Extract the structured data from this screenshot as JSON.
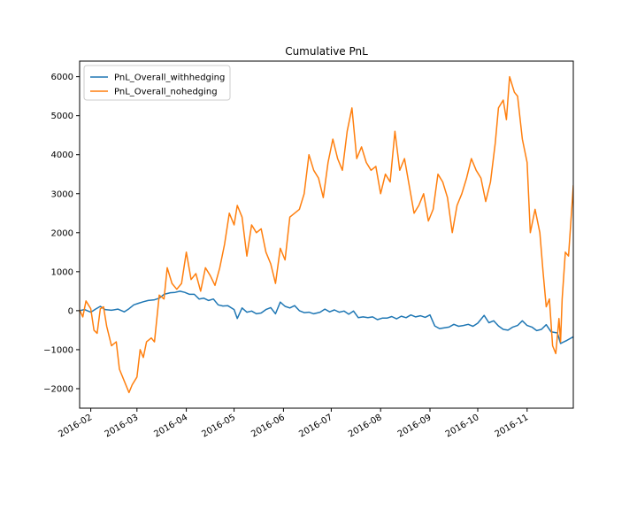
{
  "chart_data": {
    "type": "line",
    "title": "Cumulative PnL",
    "xlabel": "",
    "ylabel": "",
    "legend_position": "top-left",
    "grid": false,
    "x_ticks": [
      "2016-02",
      "2016-03",
      "2016-04",
      "2016-05",
      "2016-06",
      "2016-07",
      "2016-08",
      "2016-09",
      "2016-10",
      "2016-11"
    ],
    "y_ticks": [
      -2000,
      -1000,
      0,
      1000,
      2000,
      3000,
      4000,
      5000,
      6000
    ],
    "xlim": [
      "2016-01-25",
      "2016-11-30"
    ],
    "ylim": [
      -2500,
      6400
    ],
    "series": [
      {
        "name": "PnL_Overall_withhedging",
        "color": "#1f77b4",
        "points": [
          [
            "2016-01-25",
            0
          ],
          [
            "2016-01-28",
            30
          ],
          [
            "2016-02-01",
            -40
          ],
          [
            "2016-02-04",
            40
          ],
          [
            "2016-02-07",
            110
          ],
          [
            "2016-02-10",
            30
          ],
          [
            "2016-02-14",
            10
          ],
          [
            "2016-02-18",
            40
          ],
          [
            "2016-02-22",
            -30
          ],
          [
            "2016-02-25",
            50
          ],
          [
            "2016-02-28",
            150
          ],
          [
            "2016-03-02",
            190
          ],
          [
            "2016-03-05",
            230
          ],
          [
            "2016-03-08",
            260
          ],
          [
            "2016-03-12",
            280
          ],
          [
            "2016-03-15",
            320
          ],
          [
            "2016-03-18",
            420
          ],
          [
            "2016-03-22",
            460
          ],
          [
            "2016-03-25",
            470
          ],
          [
            "2016-03-28",
            500
          ],
          [
            "2016-03-31",
            470
          ],
          [
            "2016-04-03",
            420
          ],
          [
            "2016-04-06",
            420
          ],
          [
            "2016-04-09",
            300
          ],
          [
            "2016-04-12",
            320
          ],
          [
            "2016-04-15",
            260
          ],
          [
            "2016-04-18",
            300
          ],
          [
            "2016-04-21",
            150
          ],
          [
            "2016-04-24",
            120
          ],
          [
            "2016-04-27",
            130
          ],
          [
            "2016-05-01",
            30
          ],
          [
            "2016-05-03",
            -200
          ],
          [
            "2016-05-06",
            70
          ],
          [
            "2016-05-09",
            -40
          ],
          [
            "2016-05-12",
            -10
          ],
          [
            "2016-05-15",
            -80
          ],
          [
            "2016-05-18",
            -60
          ],
          [
            "2016-05-21",
            30
          ],
          [
            "2016-05-24",
            80
          ],
          [
            "2016-05-27",
            -80
          ],
          [
            "2016-05-30",
            220
          ],
          [
            "2016-06-02",
            110
          ],
          [
            "2016-06-05",
            70
          ],
          [
            "2016-06-08",
            130
          ],
          [
            "2016-06-11",
            0
          ],
          [
            "2016-06-14",
            -50
          ],
          [
            "2016-06-17",
            -40
          ],
          [
            "2016-06-20",
            -80
          ],
          [
            "2016-06-24",
            -40
          ],
          [
            "2016-06-27",
            40
          ],
          [
            "2016-06-30",
            -30
          ],
          [
            "2016-07-03",
            20
          ],
          [
            "2016-07-06",
            -40
          ],
          [
            "2016-07-09",
            -10
          ],
          [
            "2016-07-12",
            -90
          ],
          [
            "2016-07-15",
            -10
          ],
          [
            "2016-07-18",
            -180
          ],
          [
            "2016-07-21",
            -160
          ],
          [
            "2016-07-24",
            -180
          ],
          [
            "2016-07-27",
            -160
          ],
          [
            "2016-07-30",
            -230
          ],
          [
            "2016-08-02",
            -190
          ],
          [
            "2016-08-05",
            -190
          ],
          [
            "2016-08-08",
            -150
          ],
          [
            "2016-08-11",
            -210
          ],
          [
            "2016-08-14",
            -140
          ],
          [
            "2016-08-17",
            -180
          ],
          [
            "2016-08-20",
            -110
          ],
          [
            "2016-08-23",
            -160
          ],
          [
            "2016-08-26",
            -130
          ],
          [
            "2016-08-29",
            -170
          ],
          [
            "2016-09-01",
            -110
          ],
          [
            "2016-09-04",
            -390
          ],
          [
            "2016-09-07",
            -460
          ],
          [
            "2016-09-10",
            -440
          ],
          [
            "2016-09-13",
            -420
          ],
          [
            "2016-09-16",
            -350
          ],
          [
            "2016-09-19",
            -400
          ],
          [
            "2016-09-22",
            -380
          ],
          [
            "2016-09-25",
            -350
          ],
          [
            "2016-09-28",
            -400
          ],
          [
            "2016-10-01",
            -320
          ],
          [
            "2016-10-03",
            -220
          ],
          [
            "2016-10-05",
            -120
          ],
          [
            "2016-10-08",
            -310
          ],
          [
            "2016-10-11",
            -260
          ],
          [
            "2016-10-14",
            -390
          ],
          [
            "2016-10-17",
            -480
          ],
          [
            "2016-10-20",
            -500
          ],
          [
            "2016-10-23",
            -420
          ],
          [
            "2016-10-26",
            -380
          ],
          [
            "2016-10-29",
            -260
          ],
          [
            "2016-11-01",
            -380
          ],
          [
            "2016-11-04",
            -420
          ],
          [
            "2016-11-07",
            -510
          ],
          [
            "2016-11-10",
            -480
          ],
          [
            "2016-11-13",
            -360
          ],
          [
            "2016-11-16",
            -540
          ],
          [
            "2016-11-20",
            -570
          ],
          [
            "2016-11-22",
            -840
          ],
          [
            "2016-11-26",
            -760
          ],
          [
            "2016-11-30",
            -670
          ]
        ]
      },
      {
        "name": "PnL_Overall_nohedging",
        "color": "#ff7f0e",
        "points": [
          [
            "2016-01-25",
            20
          ],
          [
            "2016-01-27",
            -160
          ],
          [
            "2016-01-29",
            250
          ],
          [
            "2016-02-01",
            50
          ],
          [
            "2016-02-03",
            -500
          ],
          [
            "2016-02-05",
            -580
          ],
          [
            "2016-02-07",
            50
          ],
          [
            "2016-02-09",
            100
          ],
          [
            "2016-02-11",
            -400
          ],
          [
            "2016-02-14",
            -900
          ],
          [
            "2016-02-17",
            -800
          ],
          [
            "2016-02-19",
            -1500
          ],
          [
            "2016-02-22",
            -1800
          ],
          [
            "2016-02-25",
            -2100
          ],
          [
            "2016-02-27",
            -1900
          ],
          [
            "2016-03-01",
            -1700
          ],
          [
            "2016-03-03",
            -1000
          ],
          [
            "2016-03-05",
            -1200
          ],
          [
            "2016-03-07",
            -800
          ],
          [
            "2016-03-10",
            -700
          ],
          [
            "2016-03-12",
            -800
          ],
          [
            "2016-03-15",
            400
          ],
          [
            "2016-03-18",
            300
          ],
          [
            "2016-03-20",
            1100
          ],
          [
            "2016-03-23",
            700
          ],
          [
            "2016-03-26",
            550
          ],
          [
            "2016-03-29",
            700
          ],
          [
            "2016-04-01",
            1500
          ],
          [
            "2016-04-04",
            800
          ],
          [
            "2016-04-07",
            950
          ],
          [
            "2016-04-10",
            500
          ],
          [
            "2016-04-13",
            1100
          ],
          [
            "2016-04-16",
            900
          ],
          [
            "2016-04-19",
            650
          ],
          [
            "2016-04-22",
            1100
          ],
          [
            "2016-04-25",
            1700
          ],
          [
            "2016-04-28",
            2500
          ],
          [
            "2016-05-01",
            2200
          ],
          [
            "2016-05-03",
            2700
          ],
          [
            "2016-05-06",
            2400
          ],
          [
            "2016-05-09",
            1400
          ],
          [
            "2016-05-12",
            2200
          ],
          [
            "2016-05-15",
            2000
          ],
          [
            "2016-05-18",
            2100
          ],
          [
            "2016-05-21",
            1500
          ],
          [
            "2016-05-24",
            1200
          ],
          [
            "2016-05-27",
            700
          ],
          [
            "2016-05-30",
            1600
          ],
          [
            "2016-06-02",
            1300
          ],
          [
            "2016-06-05",
            2400
          ],
          [
            "2016-06-08",
            2500
          ],
          [
            "2016-06-11",
            2600
          ],
          [
            "2016-06-14",
            3000
          ],
          [
            "2016-06-17",
            4000
          ],
          [
            "2016-06-20",
            3600
          ],
          [
            "2016-06-23",
            3400
          ],
          [
            "2016-06-26",
            2900
          ],
          [
            "2016-06-29",
            3800
          ],
          [
            "2016-07-02",
            4400
          ],
          [
            "2016-07-05",
            3900
          ],
          [
            "2016-07-08",
            3600
          ],
          [
            "2016-07-11",
            4600
          ],
          [
            "2016-07-14",
            5200
          ],
          [
            "2016-07-17",
            3900
          ],
          [
            "2016-07-20",
            4200
          ],
          [
            "2016-07-23",
            3800
          ],
          [
            "2016-07-26",
            3600
          ],
          [
            "2016-07-29",
            3700
          ],
          [
            "2016-08-01",
            3000
          ],
          [
            "2016-08-04",
            3500
          ],
          [
            "2016-08-07",
            3300
          ],
          [
            "2016-08-10",
            4600
          ],
          [
            "2016-08-13",
            3600
          ],
          [
            "2016-08-16",
            3900
          ],
          [
            "2016-08-19",
            3200
          ],
          [
            "2016-08-22",
            2500
          ],
          [
            "2016-08-25",
            2700
          ],
          [
            "2016-08-28",
            3000
          ],
          [
            "2016-08-31",
            2300
          ],
          [
            "2016-09-03",
            2600
          ],
          [
            "2016-09-06",
            3500
          ],
          [
            "2016-09-09",
            3300
          ],
          [
            "2016-09-12",
            2900
          ],
          [
            "2016-09-15",
            2000
          ],
          [
            "2016-09-18",
            2700
          ],
          [
            "2016-09-21",
            3000
          ],
          [
            "2016-09-24",
            3400
          ],
          [
            "2016-09-27",
            3900
          ],
          [
            "2016-09-30",
            3600
          ],
          [
            "2016-10-03",
            3400
          ],
          [
            "2016-10-06",
            2800
          ],
          [
            "2016-10-09",
            3300
          ],
          [
            "2016-10-12",
            4300
          ],
          [
            "2016-10-14",
            5200
          ],
          [
            "2016-10-17",
            5400
          ],
          [
            "2016-10-19",
            4900
          ],
          [
            "2016-10-21",
            6000
          ],
          [
            "2016-10-24",
            5600
          ],
          [
            "2016-10-26",
            5500
          ],
          [
            "2016-10-29",
            4400
          ],
          [
            "2016-11-01",
            3800
          ],
          [
            "2016-11-03",
            2000
          ],
          [
            "2016-11-06",
            2600
          ],
          [
            "2016-11-09",
            2000
          ],
          [
            "2016-11-11",
            1000
          ],
          [
            "2016-11-13",
            100
          ],
          [
            "2016-11-15",
            300
          ],
          [
            "2016-11-17",
            -900
          ],
          [
            "2016-11-19",
            -1100
          ],
          [
            "2016-11-21",
            -200
          ],
          [
            "2016-11-22",
            -800
          ],
          [
            "2016-11-23",
            300
          ],
          [
            "2016-11-25",
            1500
          ],
          [
            "2016-11-27",
            1400
          ],
          [
            "2016-11-30",
            3200
          ]
        ]
      }
    ]
  }
}
